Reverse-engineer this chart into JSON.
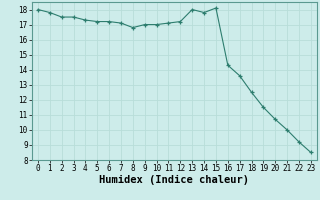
{
  "x": [
    0,
    1,
    2,
    3,
    4,
    5,
    6,
    7,
    8,
    9,
    10,
    11,
    12,
    13,
    14,
    15,
    16,
    17,
    18,
    19,
    20,
    21,
    22,
    23
  ],
  "y": [
    18.0,
    17.8,
    17.5,
    17.5,
    17.3,
    17.2,
    17.2,
    17.1,
    16.8,
    17.0,
    17.0,
    17.1,
    17.2,
    18.0,
    17.8,
    18.1,
    14.3,
    13.6,
    12.5,
    11.5,
    10.7,
    10.0,
    9.2,
    8.5
  ],
  "xlim": [
    -0.5,
    23.5
  ],
  "ylim": [
    8,
    18.5
  ],
  "yticks": [
    8,
    9,
    10,
    11,
    12,
    13,
    14,
    15,
    16,
    17,
    18
  ],
  "xticks": [
    0,
    1,
    2,
    3,
    4,
    5,
    6,
    7,
    8,
    9,
    10,
    11,
    12,
    13,
    14,
    15,
    16,
    17,
    18,
    19,
    20,
    21,
    22,
    23
  ],
  "xlabel": "Humidex (Indice chaleur)",
  "line_color": "#2d7d6e",
  "marker": "+",
  "bg_color": "#cdecea",
  "grid_color": "#b8ddd9",
  "tick_label_fontsize": 5.5,
  "xlabel_fontsize": 7.5
}
